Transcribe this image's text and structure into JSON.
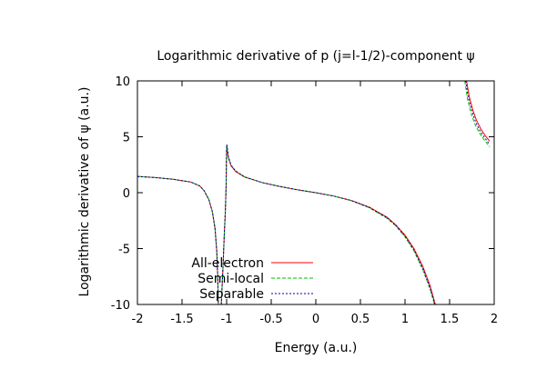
{
  "chart_data": {
    "type": "line",
    "title": "Logarithmic derivative of p (j=l-1/2)-component ψ",
    "xlabel": "Energy (a.u.)",
    "ylabel": "Logarithmic derivative of ψ (a.u.)",
    "xlim": [
      -2,
      2
    ],
    "ylim": [
      -10,
      10
    ],
    "xticks": [
      "-2",
      "-1.5",
      "-1",
      "-0.5",
      "0",
      "0.5",
      "1",
      "1.5",
      "2"
    ],
    "yticks": [
      "-10",
      "-5",
      "0",
      "5",
      "10"
    ],
    "grid": false,
    "legend_position": "bottom-left",
    "series": [
      {
        "name": "All-electron",
        "color": "#ff0000",
        "dash": "solid",
        "segments": [
          [
            [
              -2.0,
              1.45
            ],
            [
              -1.8,
              1.35
            ],
            [
              -1.6,
              1.2
            ],
            [
              -1.4,
              0.95
            ],
            [
              -1.3,
              0.6
            ],
            [
              -1.25,
              0.15
            ],
            [
              -1.2,
              -0.6
            ],
            [
              -1.16,
              -1.7
            ],
            [
              -1.13,
              -3.2
            ],
            [
              -1.11,
              -5.3
            ],
            [
              -1.1,
              -7.5
            ],
            [
              -1.093,
              -10.0
            ]
          ],
          [
            [
              -1.06,
              -10.0
            ],
            [
              -1.04,
              -6.5
            ],
            [
              -1.025,
              -3.5
            ],
            [
              -1.015,
              -1.8
            ],
            [
              -1.006,
              0.5
            ],
            [
              -1.0,
              3.8
            ],
            [
              -0.995,
              3.9
            ],
            [
              -0.98,
              3.1
            ],
            [
              -0.95,
              2.4
            ],
            [
              -0.9,
              1.9
            ],
            [
              -0.8,
              1.4
            ],
            [
              -0.6,
              0.9
            ],
            [
              -0.4,
              0.55
            ],
            [
              -0.2,
              0.25
            ],
            [
              0.0,
              0.0
            ],
            [
              0.2,
              -0.3
            ],
            [
              0.4,
              -0.7
            ],
            [
              0.6,
              -1.3
            ],
            [
              0.8,
              -2.2
            ],
            [
              0.9,
              -2.9
            ],
            [
              1.0,
              -3.8
            ],
            [
              1.1,
              -5.0
            ],
            [
              1.2,
              -6.6
            ],
            [
              1.28,
              -8.3
            ],
            [
              1.34,
              -10.0
            ]
          ],
          [
            [
              1.69,
              10.0
            ],
            [
              1.72,
              8.6
            ],
            [
              1.76,
              7.4
            ],
            [
              1.8,
              6.5
            ],
            [
              1.85,
              5.7
            ],
            [
              1.9,
              5.1
            ],
            [
              1.95,
              4.6
            ]
          ]
        ]
      },
      {
        "name": "Semi-local",
        "color": "#00c000",
        "dash": "4,2",
        "segments": [
          [
            [
              -2.0,
              1.45
            ],
            [
              -1.8,
              1.35
            ],
            [
              -1.6,
              1.2
            ],
            [
              -1.4,
              0.95
            ],
            [
              -1.3,
              0.6
            ],
            [
              -1.25,
              0.15
            ],
            [
              -1.2,
              -0.6
            ],
            [
              -1.16,
              -1.7
            ],
            [
              -1.13,
              -3.2
            ],
            [
              -1.11,
              -5.3
            ],
            [
              -1.1,
              -7.5
            ],
            [
              -1.093,
              -10.0
            ]
          ],
          [
            [
              -1.06,
              -10.0
            ],
            [
              -1.04,
              -6.5
            ],
            [
              -1.025,
              -3.5
            ],
            [
              -1.015,
              -1.8
            ],
            [
              -1.006,
              0.5
            ],
            [
              -1.0,
              4.2
            ],
            [
              -0.995,
              4.1
            ],
            [
              -0.98,
              3.2
            ],
            [
              -0.95,
              2.45
            ],
            [
              -0.9,
              1.95
            ],
            [
              -0.8,
              1.42
            ],
            [
              -0.6,
              0.9
            ],
            [
              -0.4,
              0.55
            ],
            [
              -0.2,
              0.25
            ],
            [
              0.0,
              0.0
            ],
            [
              0.2,
              -0.3
            ],
            [
              0.4,
              -0.72
            ],
            [
              0.6,
              -1.35
            ],
            [
              0.8,
              -2.3
            ],
            [
              0.9,
              -3.0
            ],
            [
              1.0,
              -3.95
            ],
            [
              1.1,
              -5.2
            ],
            [
              1.2,
              -6.9
            ],
            [
              1.28,
              -8.6
            ],
            [
              1.33,
              -10.0
            ]
          ],
          [
            [
              1.67,
              10.0
            ],
            [
              1.7,
              8.4
            ],
            [
              1.74,
              7.1
            ],
            [
              1.78,
              6.2
            ],
            [
              1.83,
              5.4
            ],
            [
              1.88,
              4.8
            ],
            [
              1.95,
              4.1
            ]
          ]
        ]
      },
      {
        "name": "Separable",
        "color": "#0000a0",
        "dash": "2,2",
        "segments": [
          [
            [
              -2.0,
              1.45
            ],
            [
              -1.8,
              1.35
            ],
            [
              -1.6,
              1.2
            ],
            [
              -1.4,
              0.95
            ],
            [
              -1.3,
              0.6
            ],
            [
              -1.25,
              0.15
            ],
            [
              -1.2,
              -0.6
            ],
            [
              -1.16,
              -1.7
            ],
            [
              -1.13,
              -3.2
            ],
            [
              -1.11,
              -5.3
            ],
            [
              -1.1,
              -7.5
            ],
            [
              -1.093,
              -10.0
            ]
          ],
          [
            [
              -1.06,
              -10.0
            ],
            [
              -1.04,
              -6.5
            ],
            [
              -1.025,
              -3.5
            ],
            [
              -1.015,
              -1.8
            ],
            [
              -1.006,
              0.5
            ],
            [
              -1.0,
              4.3
            ],
            [
              -0.995,
              4.2
            ],
            [
              -0.98,
              3.2
            ],
            [
              -0.95,
              2.45
            ],
            [
              -0.9,
              1.95
            ],
            [
              -0.8,
              1.42
            ],
            [
              -0.6,
              0.9
            ],
            [
              -0.4,
              0.55
            ],
            [
              -0.2,
              0.25
            ],
            [
              0.0,
              0.0
            ],
            [
              0.2,
              -0.3
            ],
            [
              0.4,
              -0.71
            ],
            [
              0.6,
              -1.32
            ],
            [
              0.8,
              -2.25
            ],
            [
              0.9,
              -2.95
            ],
            [
              1.0,
              -3.9
            ],
            [
              1.1,
              -5.1
            ],
            [
              1.2,
              -6.8
            ],
            [
              1.28,
              -8.5
            ],
            [
              1.335,
              -10.0
            ]
          ],
          [
            [
              1.68,
              10.0
            ],
            [
              1.71,
              8.5
            ],
            [
              1.75,
              7.3
            ],
            [
              1.79,
              6.35
            ],
            [
              1.84,
              5.55
            ],
            [
              1.89,
              4.95
            ],
            [
              1.95,
              4.3
            ]
          ]
        ]
      }
    ]
  }
}
